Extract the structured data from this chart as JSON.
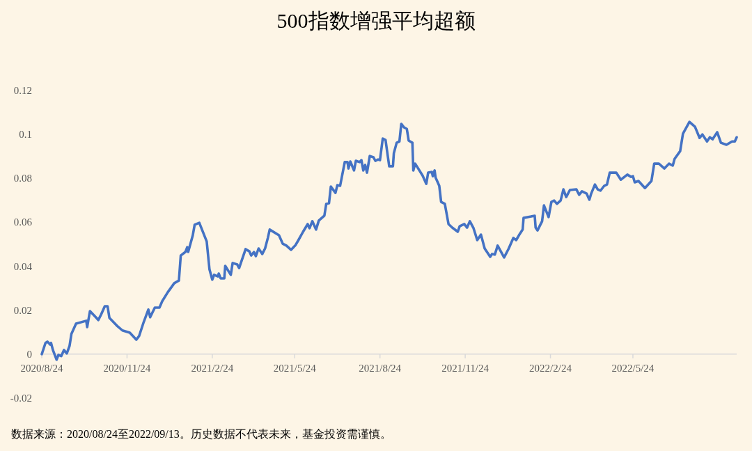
{
  "chart_data": {
    "type": "line",
    "title": "500指数增强平均超额",
    "color": "#4472c4",
    "x": [
      "2020-08-24",
      "2020-08-28",
      "2020-08-30",
      "2020-09-02",
      "2020-09-03",
      "2020-09-05",
      "2020-09-09",
      "2020-09-11",
      "2020-09-14",
      "2020-09-17",
      "2020-09-20",
      "2020-09-23",
      "2020-09-25",
      "2020-09-30",
      "2020-10-11",
      "2020-10-12",
      "2020-10-15",
      "2020-10-22",
      "2020-10-24",
      "2020-10-27",
      "2020-10-31",
      "2020-11-03",
      "2020-11-05",
      "2020-11-11",
      "2020-11-13",
      "2020-11-19",
      "2020-11-27",
      "2020-12-04",
      "2020-12-07",
      "2020-12-12",
      "2020-12-17",
      "2020-12-19",
      "2020-12-24",
      "2020-12-29",
      "2021-01-01",
      "2021-01-07",
      "2021-01-14",
      "2021-01-19",
      "2021-01-21",
      "2021-01-26",
      "2021-01-28",
      "2021-01-29",
      "2021-02-03",
      "2021-02-05",
      "2021-02-10",
      "2021-02-18",
      "2021-02-21",
      "2021-02-24",
      "2021-02-26",
      "2021-03-02",
      "2021-03-03",
      "2021-03-05",
      "2021-03-09",
      "2021-03-10",
      "2021-03-16",
      "2021-03-18",
      "2021-03-23",
      "2021-03-25",
      "2021-04-01",
      "2021-04-05",
      "2021-04-07",
      "2021-04-10",
      "2021-04-12",
      "2021-04-15",
      "2021-04-19",
      "2021-04-22",
      "2021-04-25",
      "2021-04-27",
      "2021-05-07",
      "2021-05-11",
      "2021-05-15",
      "2021-05-20",
      "2021-05-25",
      "2021-05-28",
      "2021-06-02",
      "2021-06-07",
      "2021-06-09",
      "2021-06-12",
      "2021-06-16",
      "2021-06-19",
      "2021-06-25",
      "2021-06-27",
      "2021-06-30",
      "2021-07-02",
      "2021-07-07",
      "2021-07-09",
      "2021-07-12",
      "2021-07-17",
      "2021-07-20",
      "2021-07-21",
      "2021-07-23",
      "2021-07-27",
      "2021-07-29",
      "2021-08-02",
      "2021-08-04",
      "2021-08-06",
      "2021-08-08",
      "2021-08-10",
      "2021-08-13",
      "2021-08-17",
      "2021-08-19",
      "2021-08-22",
      "2021-08-24",
      "2021-08-27",
      "2021-08-30",
      "2021-09-03",
      "2021-09-07",
      "2021-09-08",
      "2021-09-11",
      "2021-09-14",
      "2021-09-16",
      "2021-09-19",
      "2021-09-22",
      "2021-09-24",
      "2021-09-28",
      "2021-09-29",
      "2021-10-01",
      "2021-10-09",
      "2021-10-13",
      "2021-10-15",
      "2021-10-19",
      "2021-10-20",
      "2021-10-22",
      "2021-10-23",
      "2021-10-27",
      "2021-10-29",
      "2021-11-02",
      "2021-11-06",
      "2021-11-10",
      "2021-11-16",
      "2021-11-18",
      "2021-11-23",
      "2021-11-26",
      "2021-11-29",
      "2021-12-03",
      "2021-12-07",
      "2021-12-11",
      "2021-12-15",
      "2021-12-21",
      "2021-12-23",
      "2021-12-26",
      "2021-12-29",
      "2022-01-05",
      "2022-01-10",
      "2022-01-15",
      "2022-01-18",
      "2022-01-21",
      "2022-01-25",
      "2022-01-26",
      "2022-02-07",
      "2022-02-08",
      "2022-02-10",
      "2022-02-15",
      "2022-02-17",
      "2022-02-22",
      "2022-02-25",
      "2022-02-28",
      "2022-03-03",
      "2022-03-07",
      "2022-03-10",
      "2022-03-13",
      "2022-03-17",
      "2022-03-24",
      "2022-03-27",
      "2022-03-30",
      "2022-04-04",
      "2022-04-07",
      "2022-04-09",
      "2022-04-13",
      "2022-04-16",
      "2022-04-19",
      "2022-04-23",
      "2022-04-26",
      "2022-04-29",
      "2022-05-06",
      "2022-05-11",
      "2022-05-18",
      "2022-05-22",
      "2022-05-24",
      "2022-05-26",
      "2022-05-30",
      "2022-06-06",
      "2022-06-13",
      "2022-06-16",
      "2022-06-21",
      "2022-06-27",
      "2022-07-02",
      "2022-07-06",
      "2022-07-08",
      "2022-07-14",
      "2022-07-17",
      "2022-07-24",
      "2022-07-30",
      "2022-08-04",
      "2022-08-07",
      "2022-08-12",
      "2022-08-15",
      "2022-08-18",
      "2022-08-23",
      "2022-08-27",
      "2022-09-02",
      "2022-09-08",
      "2022-09-11",
      "2022-09-13"
    ],
    "values": [
      0,
      0.0051,
      0.0057,
      0.0044,
      0.0051,
      0.0019,
      -0.0025,
      -0.0003,
      -0.0009,
      0.0019,
      0.0003,
      0.0038,
      0.0092,
      0.0139,
      0.0152,
      0.0123,
      0.0196,
      0.0165,
      0.0155,
      0.018,
      0.0218,
      0.0218,
      0.0165,
      0.0139,
      0.013,
      0.0108,
      0.0098,
      0.0066,
      0.0082,
      0.0146,
      0.0203,
      0.0168,
      0.0212,
      0.0212,
      0.0241,
      0.0282,
      0.0323,
      0.0335,
      0.0449,
      0.0465,
      0.0487,
      0.0465,
      0.0541,
      0.0589,
      0.0598,
      0.0513,
      0.0386,
      0.0339,
      0.0361,
      0.0354,
      0.0367,
      0.0345,
      0.0345,
      0.0402,
      0.0361,
      0.0415,
      0.0408,
      0.0392,
      0.0478,
      0.0468,
      0.0449,
      0.0465,
      0.0446,
      0.0481,
      0.0456,
      0.0481,
      0.0529,
      0.0567,
      0.0541,
      0.0503,
      0.0494,
      0.0475,
      0.0497,
      0.0519,
      0.0557,
      0.0592,
      0.0573,
      0.0605,
      0.0567,
      0.0608,
      0.063,
      0.0684,
      0.0687,
      0.0763,
      0.0734,
      0.0769,
      0.0766,
      0.0874,
      0.0874,
      0.0845,
      0.0877,
      0.0836,
      0.088,
      0.0874,
      0.0883,
      0.0836,
      0.0861,
      0.0826,
      0.0902,
      0.0896,
      0.088,
      0.0886,
      0.0883,
      0.0981,
      0.0975,
      0.0855,
      0.0855,
      0.0915,
      0.0962,
      0.0968,
      0.1048,
      0.1032,
      0.1025,
      0.0972,
      0.0962,
      0.0836,
      0.0867,
      0.0813,
      0.0775,
      0.0826,
      0.0829,
      0.081,
      0.0836,
      0.0804,
      0.0766,
      0.0693,
      0.0684,
      0.0592,
      0.0576,
      0.0557,
      0.0582,
      0.0592,
      0.0576,
      0.0605,
      0.0573,
      0.0519,
      0.0544,
      0.0481,
      0.0443,
      0.0456,
      0.0453,
      0.0494,
      0.044,
      0.0481,
      0.0529,
      0.0519,
      0.0541,
      0.0567,
      0.062,
      0.063,
      0.0576,
      0.0563,
      0.0605,
      0.0677,
      0.0624,
      0.0693,
      0.0699,
      0.0684,
      0.0699,
      0.075,
      0.0715,
      0.0747,
      0.075,
      0.0725,
      0.0741,
      0.0731,
      0.0703,
      0.0731,
      0.0772,
      0.075,
      0.0744,
      0.0766,
      0.0772,
      0.0826,
      0.0826,
      0.0794,
      0.0817,
      0.0807,
      0.081,
      0.0782,
      0.0788,
      0.0756,
      0.0788,
      0.0867,
      0.0867,
      0.0845,
      0.0867,
      0.0858,
      0.0889,
      0.0924,
      0.1003,
      0.1057,
      0.1035,
      0.0984,
      0.1,
      0.0968,
      0.0987,
      0.0978,
      0.101,
      0.0962,
      0.0953,
      0.0968,
      0.0968,
      0.0987
    ],
    "xlim": [
      "2020-08-24",
      "2022-09-13"
    ],
    "xticks": [
      {
        "value": "2020-08-24",
        "label": "2020/8/24"
      },
      {
        "value": "2020-11-24",
        "label": "2020/11/24"
      },
      {
        "value": "2021-02-24",
        "label": "2021/2/24"
      },
      {
        "value": "2021-05-24",
        "label": "2021/5/24"
      },
      {
        "value": "2021-08-24",
        "label": "2021/8/24"
      },
      {
        "value": "2021-11-24",
        "label": "2021/11/24"
      },
      {
        "value": "2022-02-24",
        "label": "2022/2/24"
      },
      {
        "value": "2022-05-24",
        "label": "2022/5/24"
      }
    ],
    "ylim": [
      -0.02,
      0.12
    ],
    "yticks": [
      -0.02,
      0,
      0.02,
      0.04,
      0.06,
      0.08,
      0.1,
      0.12
    ],
    "annotations": [
      "数据来源：2020/08/24至2022/09/13。历史数据不代表未来，基金投资需谨慎。"
    ]
  }
}
